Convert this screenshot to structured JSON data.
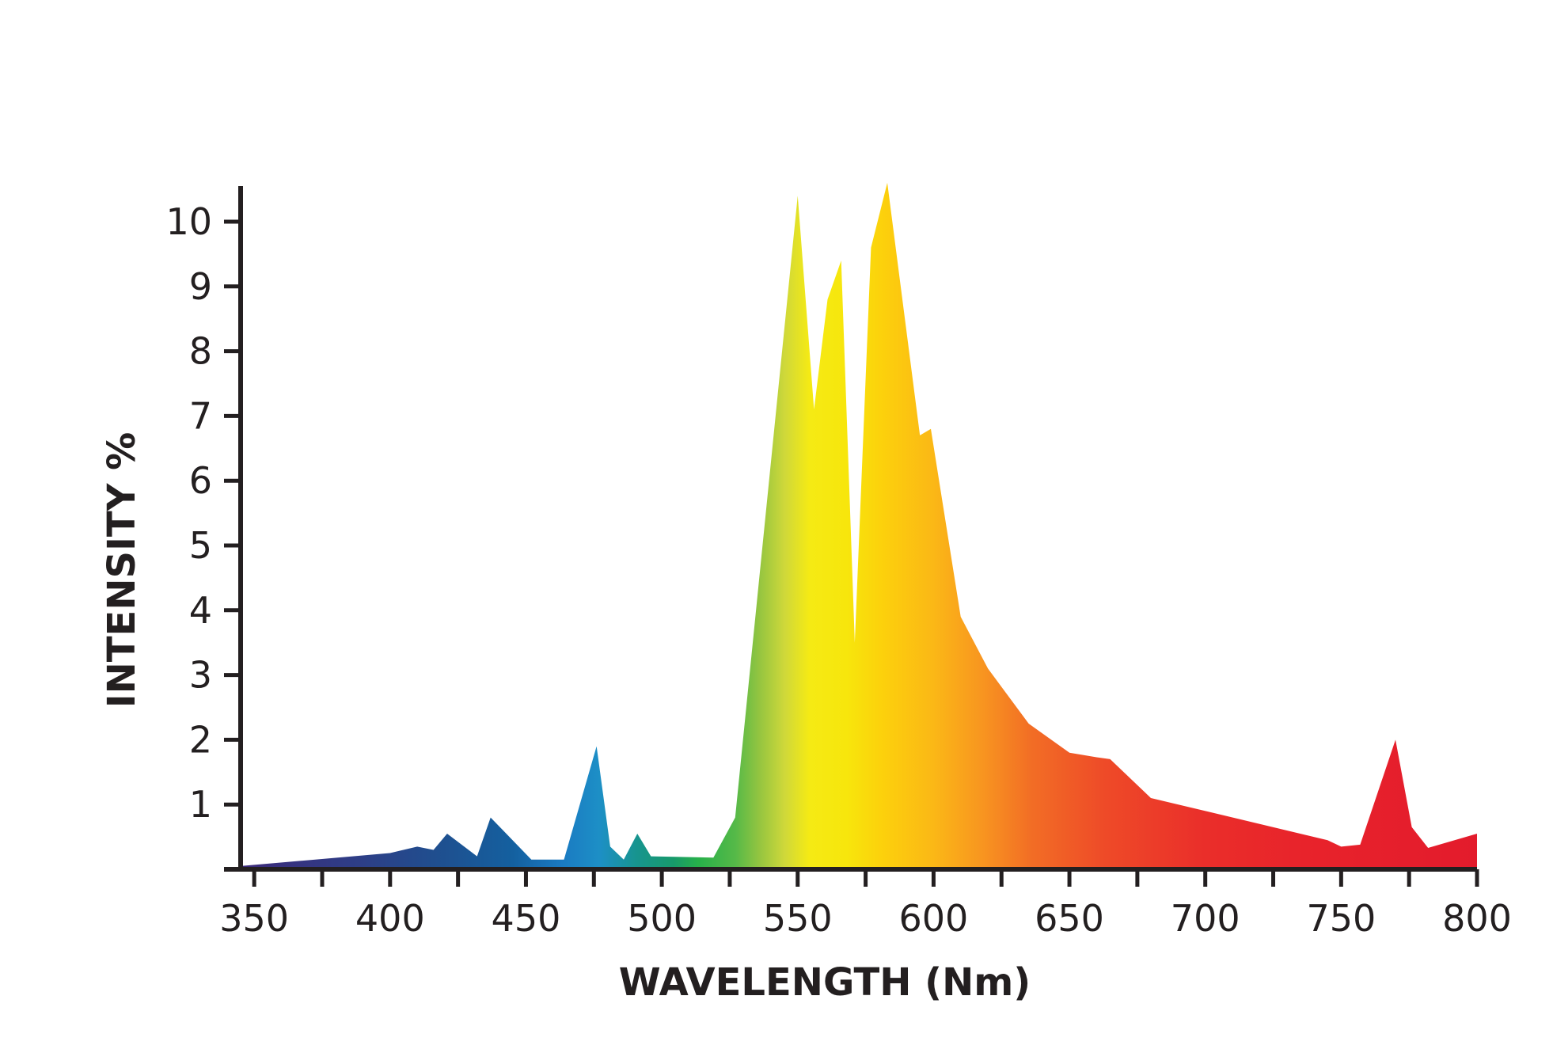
{
  "chart_data": {
    "type": "area",
    "title": "",
    "xlabel": "WAVELENGTH (Nm)",
    "ylabel": "INTENSITY %",
    "xlim": [
      345,
      800
    ],
    "ylim": [
      0,
      10.6
    ],
    "xticks": [
      350,
      375,
      400,
      425,
      450,
      475,
      500,
      525,
      550,
      575,
      600,
      625,
      650,
      675,
      700,
      725,
      750,
      775,
      800
    ],
    "xtick_labels": [
      {
        "value": 350,
        "label": "350"
      },
      {
        "value": 400,
        "label": "400"
      },
      {
        "value": 450,
        "label": "450"
      },
      {
        "value": 500,
        "label": "500"
      },
      {
        "value": 550,
        "label": "550"
      },
      {
        "value": 600,
        "label": "600"
      },
      {
        "value": 650,
        "label": "650"
      },
      {
        "value": 700,
        "label": "700"
      },
      {
        "value": 750,
        "label": "750"
      },
      {
        "value": 800,
        "label": "800"
      }
    ],
    "yticks": [
      1,
      2,
      3,
      4,
      5,
      6,
      7,
      8,
      9,
      10
    ],
    "ytick_labels": [
      "1",
      "2",
      "3",
      "4",
      "5",
      "6",
      "7",
      "8",
      "9",
      "10"
    ],
    "grid": false,
    "fill": "spectral gradient (violet to red by wavelength)",
    "series": [
      {
        "x": [
          345,
          400,
          410,
          416,
          421,
          432,
          437,
          452,
          464,
          476,
          481,
          486,
          491,
          496,
          519,
          527,
          550,
          556,
          561,
          566,
          571,
          577,
          583,
          595,
          599,
          610,
          620,
          635,
          650,
          660,
          665,
          680,
          745,
          750,
          757,
          770,
          776,
          782,
          800
        ],
        "y": [
          0.05,
          0.25,
          0.35,
          0.3,
          0.55,
          0.2,
          0.8,
          0.15,
          0.15,
          1.9,
          0.35,
          0.15,
          0.55,
          0.2,
          0.18,
          0.8,
          10.4,
          7.1,
          8.8,
          9.4,
          3.5,
          9.6,
          10.6,
          6.7,
          6.8,
          3.9,
          3.1,
          2.25,
          1.8,
          1.73,
          1.7,
          1.1,
          0.45,
          0.35,
          0.38,
          2.0,
          0.65,
          0.33,
          0.55
        ]
      }
    ]
  }
}
